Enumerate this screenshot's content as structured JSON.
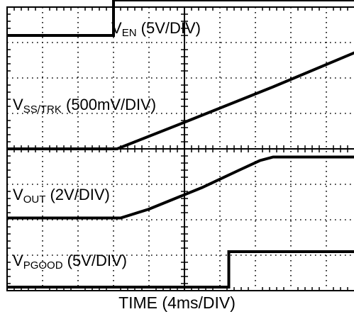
{
  "chart_data": {
    "type": "line",
    "title": "",
    "xlabel": "TIME (4ms/DIV)",
    "ylabel": "",
    "grid": true,
    "x_divisions": 10,
    "y_divisions": 8,
    "xlim": [
      0,
      40
    ],
    "x_unit": "ms",
    "series": [
      {
        "name": "V_EN (5V/DIV)",
        "label": {
          "main": "V",
          "sub": "EN",
          "tail": " (5V/DIV)"
        },
        "volts_per_div": 5,
        "baseline_div": 7.2,
        "x": [
          0,
          12,
          12,
          40
        ],
        "y": [
          0,
          0,
          1,
          1
        ]
      },
      {
        "name": "V_SS/TRK (500mV/DIV)",
        "label": {
          "main": "V",
          "sub": "SS/TRK",
          "tail": " (500mV/DIV)"
        },
        "volts_per_div": 0.5,
        "baseline_div": 4.0,
        "x": [
          0,
          12.4,
          20,
          30,
          40
        ],
        "y": [
          0,
          0,
          0.75,
          1.75,
          2.8
        ]
      },
      {
        "name": "V_OUT (2V/DIV)",
        "label": {
          "main": "V",
          "sub": "OUT",
          "tail": " (2V/DIV)"
        },
        "volts_per_div": 2,
        "baseline_div": 2.05,
        "x": [
          0,
          12.8,
          16,
          22,
          26,
          28.5,
          30,
          40
        ],
        "y": [
          0,
          0,
          0.25,
          0.86,
          1.33,
          1.62,
          1.72,
          1.72
        ]
      },
      {
        "name": "V_PGOOD (5V/DIV)",
        "label": {
          "main": "V",
          "sub": "PGOOD",
          "tail": " (5V/DIV)"
        },
        "volts_per_div": 5,
        "baseline_div": 0.1,
        "x": [
          0,
          25,
          25,
          40
        ],
        "y": [
          0,
          0,
          1,
          1
        ]
      }
    ]
  }
}
